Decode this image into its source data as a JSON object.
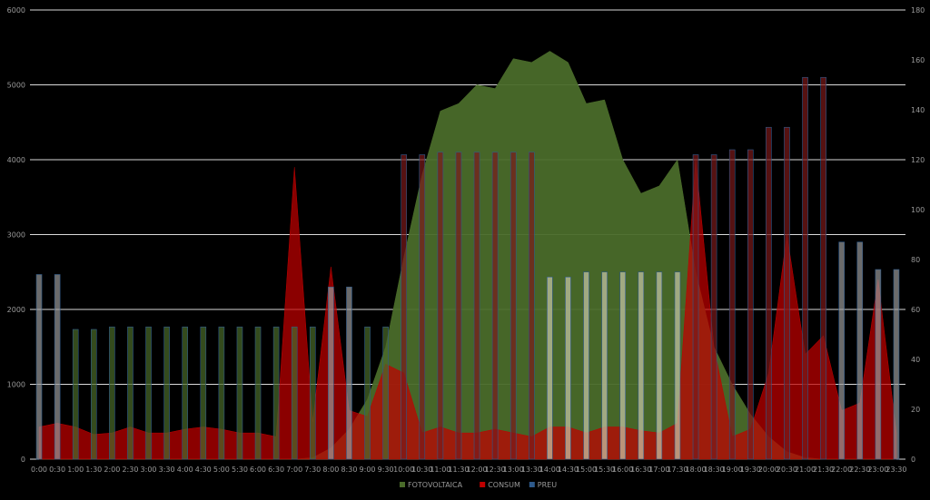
{
  "chart_data": {
    "type": "bar",
    "title": "",
    "categories": [
      "0:00",
      "0:30",
      "1:00",
      "1:30",
      "2:00",
      "2:30",
      "3:00",
      "3:30",
      "4:00",
      "4:30",
      "5:00",
      "5:30",
      "6:00",
      "6:30",
      "7:00",
      "7:30",
      "8:00",
      "8:30",
      "9:00",
      "9:30",
      "10:00",
      "10:30",
      "11:00",
      "11:30",
      "12:00",
      "12:30",
      "13:00",
      "13:30",
      "14:00",
      "14:30",
      "15:00",
      "15:30",
      "16:00",
      "16:30",
      "17:00",
      "17:30",
      "18:00",
      "18:30",
      "19:00",
      "19:30",
      "20:00",
      "20:30",
      "21:00",
      "21:30",
      "22:00",
      "22:30",
      "23:00",
      "23:30"
    ],
    "y_left": {
      "ylim": [
        0,
        6000
      ],
      "ticks": [
        "0",
        "1000",
        "2000",
        "3000",
        "4000",
        "5000",
        "6000"
      ]
    },
    "y_right": {
      "ylim": [
        0,
        180
      ],
      "ticks": [
        "0",
        "20",
        "40",
        "60",
        "80",
        "100",
        "120",
        "140",
        "160",
        "180"
      ]
    },
    "grid": true,
    "legend_position": "bottom",
    "series": [
      {
        "name": "FOTOVOLTAICA",
        "type": "area",
        "axis": "left",
        "color": "#4a6b2a",
        "values": [
          0,
          0,
          0,
          0,
          0,
          0,
          0,
          0,
          0,
          0,
          0,
          0,
          0,
          0,
          0,
          20,
          150,
          400,
          800,
          1500,
          2700,
          3800,
          4650,
          4750,
          5000,
          4950,
          5350,
          5300,
          5450,
          5300,
          4750,
          4800,
          4000,
          3550,
          3650,
          4000,
          2500,
          1500,
          1000,
          600,
          300,
          100,
          20,
          0,
          0,
          0,
          0,
          0
        ]
      },
      {
        "name": "CONSUM",
        "type": "area",
        "axis": "left",
        "color": "#c00000",
        "values": [
          430,
          480,
          430,
          330,
          350,
          430,
          350,
          350,
          400,
          430,
          400,
          350,
          350,
          300,
          3900,
          500,
          2570,
          650,
          570,
          1270,
          1150,
          350,
          430,
          350,
          350,
          400,
          350,
          300,
          430,
          430,
          350,
          430,
          430,
          380,
          350,
          480,
          4000,
          1500,
          300,
          400,
          1150,
          3000,
          1400,
          1650,
          650,
          750,
          2400,
          350
        ]
      },
      {
        "name": "PREU",
        "type": "bar",
        "axis": "right",
        "values": [
          74,
          74,
          52,
          52,
          53,
          53,
          53,
          53,
          53,
          53,
          53,
          53,
          53,
          53,
          53,
          53,
          69,
          69,
          53,
          53,
          122,
          122,
          123,
          123,
          123,
          123,
          123,
          123,
          73,
          73,
          75,
          75,
          75,
          75,
          75,
          75,
          122,
          122,
          124,
          124,
          133,
          133,
          153,
          153,
          87,
          87,
          76,
          76
        ],
        "colors": [
          "#999999",
          "#999999",
          "#4a6b2a",
          "#4a6b2a",
          "#4a6b2a",
          "#4a6b2a",
          "#4a6b2a",
          "#4a6b2a",
          "#4a6b2a",
          "#4a6b2a",
          "#4a6b2a",
          "#4a6b2a",
          "#4a6b2a",
          "#4a6b2a",
          "#4a6b2a",
          "#4a6b2a",
          "#999999",
          "#999999",
          "#4a6b2a",
          "#4a6b2a",
          "#7a1a1a",
          "#7a1a1a",
          "#7a1a1a",
          "#7a1a1a",
          "#7a1a1a",
          "#7a1a1a",
          "#7a1a1a",
          "#7a1a1a",
          "#c8c8a8",
          "#c8c8a8",
          "#c8c8a8",
          "#c8c8a8",
          "#c8c8a8",
          "#c8c8a8",
          "#c8c8a8",
          "#c8c8a8",
          "#7a1a1a",
          "#7a1a1a",
          "#7a1a1a",
          "#7a1a1a",
          "#7a1a1a",
          "#7a1a1a",
          "#7a1a1a",
          "#7a1a1a",
          "#999999",
          "#999999",
          "#999999",
          "#999999"
        ]
      }
    ],
    "legend_colors": [
      "#4a6b2a",
      "#c00000",
      "#2e5a8c"
    ]
  }
}
